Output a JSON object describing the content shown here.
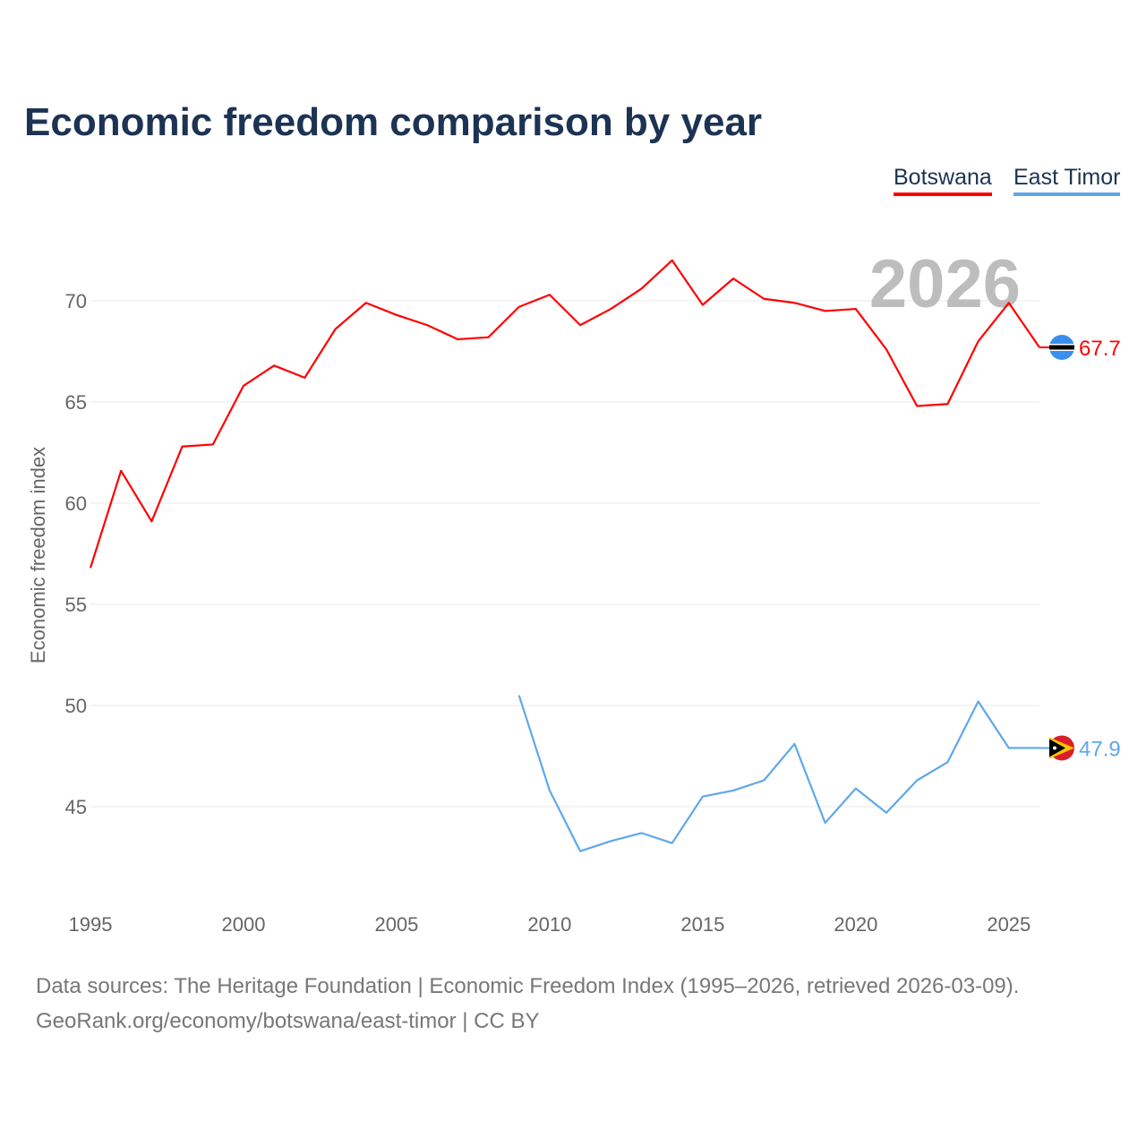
{
  "chart_data": {
    "type": "line",
    "title": "Economic freedom comparison by year",
    "ylabel": "Economic freedom index",
    "xlabel": "",
    "xlim": [
      1995,
      2026
    ],
    "ylim": [
      40.5,
      73.5
    ],
    "yticks": [
      45,
      50,
      55,
      60,
      65,
      70
    ],
    "xticks": [
      1995,
      2000,
      2005,
      2010,
      2015,
      2020,
      2025
    ],
    "grid": true,
    "legend_position": "top-right",
    "year_watermark": "2026",
    "series": [
      {
        "name": "Botswana",
        "color": "#ff0000",
        "end_label": "67.7",
        "x": [
          1995,
          1996,
          1997,
          1998,
          1999,
          2000,
          2001,
          2002,
          2003,
          2004,
          2005,
          2006,
          2007,
          2008,
          2009,
          2010,
          2011,
          2012,
          2013,
          2014,
          2015,
          2016,
          2017,
          2018,
          2019,
          2020,
          2021,
          2022,
          2023,
          2024,
          2025,
          2026
        ],
        "values": [
          56.8,
          61.6,
          59.1,
          62.8,
          62.9,
          65.8,
          66.8,
          66.2,
          68.6,
          69.9,
          69.3,
          68.8,
          68.1,
          68.2,
          69.7,
          70.3,
          68.8,
          69.6,
          70.6,
          72.0,
          69.8,
          71.1,
          70.1,
          69.9,
          69.5,
          69.6,
          67.6,
          64.8,
          64.9,
          68.0,
          69.9,
          67.7
        ]
      },
      {
        "name": "East Timor",
        "color": "#5ea8ea",
        "end_label": "47.9",
        "x": [
          2009,
          2010,
          2011,
          2012,
          2013,
          2014,
          2015,
          2016,
          2017,
          2018,
          2019,
          2020,
          2021,
          2022,
          2023,
          2024,
          2025,
          2026
        ],
        "values": [
          50.5,
          45.8,
          42.8,
          43.3,
          43.7,
          43.2,
          45.5,
          45.8,
          46.3,
          48.1,
          44.2,
          45.9,
          44.7,
          46.3,
          47.2,
          50.2,
          47.9,
          47.9
        ]
      }
    ]
  },
  "footer": {
    "line1": "Data sources: The Heritage Foundation | Economic Freedom Index (1995–2026, retrieved 2026-03-09).",
    "line2": "GeoRank.org/economy/botswana/east-timor | CC BY"
  }
}
